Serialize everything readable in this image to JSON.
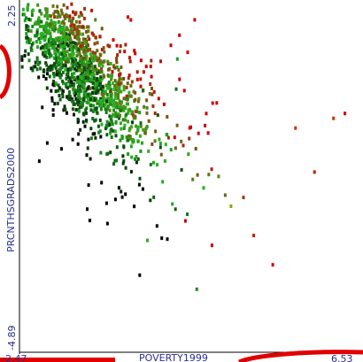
{
  "chart_data": {
    "type": "scatter",
    "title": "",
    "xlabel": "POVERTY1999",
    "ylabel": "PRCNTHSGRADS2000",
    "xlim": [
      -2.47,
      6.53
    ],
    "ylim": [
      -4.89,
      2.25
    ],
    "x_tick_labels": [
      "-2.47",
      "6.53"
    ],
    "y_tick_labels": [
      "2.25",
      "-4.89"
    ],
    "color_scale": {
      "low": "#000000",
      "mid": "#22bb22",
      "high": "#cc0000"
    },
    "cluster": {
      "n_points": 1400,
      "x_center": -0.9,
      "y_center": 0.95,
      "description": "dense cloud near top-left, sloping downward to the right"
    },
    "points": [
      {
        "x": 1.9,
        "y": -2.2,
        "c": "#cc0000"
      },
      {
        "x": 2.6,
        "y": -2.7,
        "c": "#cc0000"
      },
      {
        "x": 3.7,
        "y": -2.5,
        "c": "#bb2200"
      },
      {
        "x": 4.2,
        "y": -3.1,
        "c": "#cc0000"
      },
      {
        "x": 5.3,
        "y": -1.2,
        "c": "#bb2200"
      },
      {
        "x": 6.1,
        "y": 0.0,
        "c": "#cc0000"
      },
      {
        "x": 3.1,
        "y": -1.9,
        "c": "#88aa00"
      },
      {
        "x": 4.8,
        "y": -0.3,
        "c": "#cc3300"
      },
      {
        "x": 2.2,
        "y": -3.6,
        "c": "#228822"
      },
      {
        "x": 5.8,
        "y": -0.1,
        "c": "#cc3300"
      },
      {
        "x": 1.3,
        "y": -1.4,
        "c": "#22aa22"
      },
      {
        "x": 0.9,
        "y": -2.6,
        "c": "#33aa22"
      }
    ]
  }
}
